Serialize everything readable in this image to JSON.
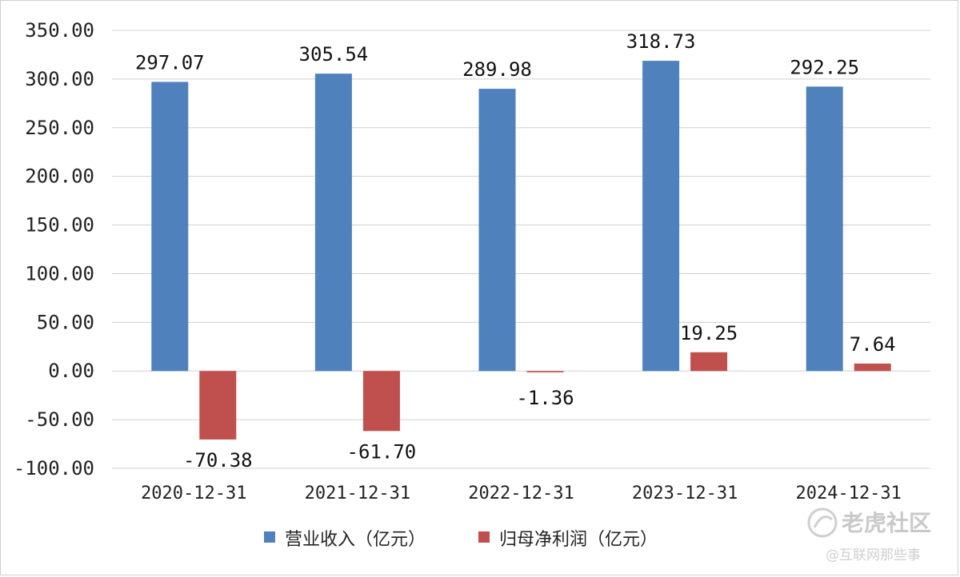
{
  "chart_data": {
    "type": "bar",
    "categories": [
      "2020-12-31",
      "2021-12-31",
      "2022-12-31",
      "2023-12-31",
      "2024-12-31"
    ],
    "series": [
      {
        "name": "营业收入（亿元）",
        "values": [
          297.07,
          305.54,
          289.98,
          318.73,
          292.25
        ],
        "labels": [
          "297.07",
          "305.54",
          "289.98",
          "318.73",
          "292.25"
        ],
        "color": "#4f81bd"
      },
      {
        "name": "归母净利润（亿元）",
        "values": [
          -70.38,
          -61.7,
          -1.36,
          19.25,
          7.64
        ],
        "labels": [
          "-70.38",
          "-61.70",
          "-1.36",
          "19.25",
          "7.64"
        ],
        "color": "#c0504d"
      }
    ],
    "yticks": [
      "350.00",
      "300.00",
      "250.00",
      "200.00",
      "150.00",
      "100.00",
      "50.00",
      "0.00",
      "-50.00",
      "-100.00"
    ],
    "ylim": [
      -100,
      350
    ],
    "grid": true,
    "legend_position": "bottom"
  },
  "watermark": {
    "logo_text": "老虎社区",
    "sub_text": "@互联网那些事"
  }
}
